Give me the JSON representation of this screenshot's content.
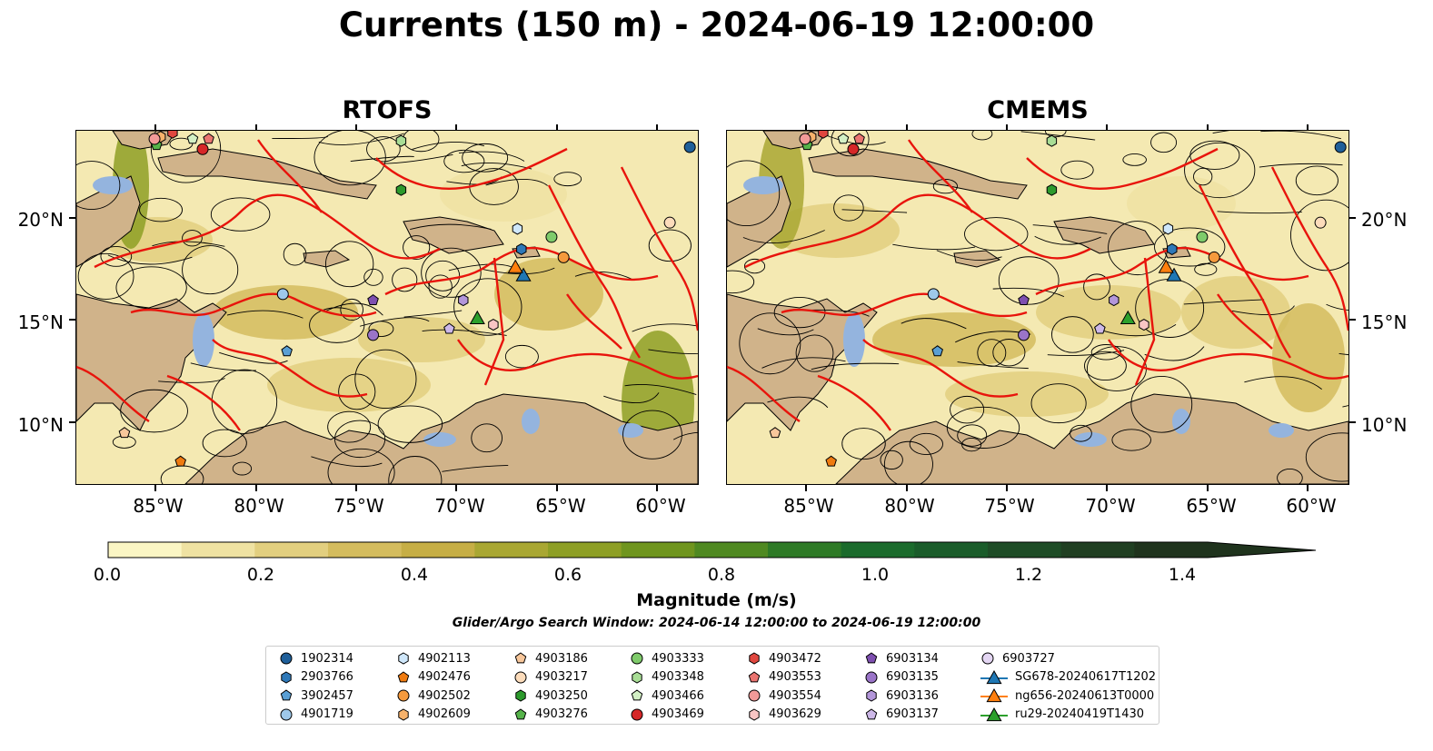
{
  "title": "Currents (150 m) - 2024-06-19 12:00:00",
  "panels": [
    {
      "title": "RTOFS"
    },
    {
      "title": "CMEMS"
    }
  ],
  "lat_labels": [
    "20°N",
    "15°N",
    "10°N"
  ],
  "lon_labels": [
    "85°W",
    "80°W",
    "75°W",
    "70°W",
    "65°W",
    "60°W"
  ],
  "map_extent": {
    "lon_min": -89.0,
    "lon_max": -58.0,
    "lat_min": 7.0,
    "lat_max": 24.3
  },
  "colorbar": {
    "label": "Magnitude (m/s)",
    "ticks": [
      "0.0",
      "0.2",
      "0.4",
      "0.6",
      "0.8",
      "1.0",
      "1.2",
      "1.4"
    ],
    "min": 0.0,
    "max": 1.5,
    "step": 0.1,
    "extend": "max",
    "colors": [
      "#fbf6c4",
      "#efe2a2",
      "#e2cf7f",
      "#d4bc5e",
      "#c6ae45",
      "#a9a732",
      "#8e9f25",
      "#6f951e",
      "#4f8921",
      "#2e7a26",
      "#1b6b2c",
      "#1a5c2a",
      "#1e4c26",
      "#203f22",
      "#1f331d"
    ]
  },
  "search_window": "Glider/Argo Search Window: 2024-06-14 12:00:00 to 2024-06-19 12:00:00",
  "map_colors": {
    "land": "#d0b38a",
    "ocean": "#f4e9b2",
    "lakes": "#94b4de",
    "boundary": "#e8140c",
    "streamline": "#000000"
  },
  "legend": [
    {
      "label": "1902314",
      "marker": "circle",
      "color": "#1f5f9a"
    },
    {
      "label": "2903766",
      "marker": "hexagon",
      "color": "#2e78b8"
    },
    {
      "label": "3902457",
      "marker": "pentagon",
      "color": "#5a9fd4"
    },
    {
      "label": "4901719",
      "marker": "circle",
      "color": "#9ec8ea"
    },
    {
      "label": "4902113",
      "marker": "hexagon",
      "color": "#cfe7fa"
    },
    {
      "label": "4902476",
      "marker": "pentagon",
      "color": "#ef7b10"
    },
    {
      "label": "4902502",
      "marker": "circle",
      "color": "#f59a3d"
    },
    {
      "label": "4902609",
      "marker": "hexagon",
      "color": "#f7b26b"
    },
    {
      "label": "4903186",
      "marker": "pentagon",
      "color": "#f8c79b"
    },
    {
      "label": "4903217",
      "marker": "circle",
      "color": "#fcdcbb"
    },
    {
      "label": "4903250",
      "marker": "hexagon",
      "color": "#2c9a2c"
    },
    {
      "label": "4903276",
      "marker": "pentagon",
      "color": "#56b34a"
    },
    {
      "label": "4903333",
      "marker": "circle",
      "color": "#7fcb6b"
    },
    {
      "label": "4903348",
      "marker": "hexagon",
      "color": "#a8dd95"
    },
    {
      "label": "4903466",
      "marker": "pentagon",
      "color": "#d3f0c5"
    },
    {
      "label": "4903469",
      "marker": "circle",
      "color": "#d62728"
    },
    {
      "label": "4903472",
      "marker": "hexagon",
      "color": "#e0473f"
    },
    {
      "label": "4903553",
      "marker": "pentagon",
      "color": "#ea7470"
    },
    {
      "label": "4903554",
      "marker": "circle",
      "color": "#f29a98"
    },
    {
      "label": "4903629",
      "marker": "hexagon",
      "color": "#f9c5c4"
    },
    {
      "label": "6903134",
      "marker": "pentagon",
      "color": "#7e4fb0"
    },
    {
      "label": "6903135",
      "marker": "circle",
      "color": "#9a74c8"
    },
    {
      "label": "6903136",
      "marker": "hexagon",
      "color": "#b396da"
    },
    {
      "label": "6903137",
      "marker": "pentagon",
      "color": "#cdb8e8"
    },
    {
      "label": "6903727",
      "marker": "circle",
      "color": "#e4d6f3"
    },
    {
      "label": "SG678-20240617T1202",
      "marker": "triangle",
      "color": "#1f77b4"
    },
    {
      "label": "ng656-20240613T0000",
      "marker": "triangle",
      "color": "#ff7f0e"
    },
    {
      "label": "ru29-20240419T1430",
      "marker": "triangle",
      "color": "#2ca02c"
    }
  ],
  "observations": [
    {
      "label": "1902314",
      "lon": -58.4,
      "lat": 23.5
    },
    {
      "label": "2903766",
      "lon": -66.8,
      "lat": 18.5
    },
    {
      "label": "3902457",
      "lon": -78.5,
      "lat": 13.5
    },
    {
      "label": "4901719",
      "lon": -78.7,
      "lat": 16.3
    },
    {
      "label": "4902113",
      "lon": -67.0,
      "lat": 19.5
    },
    {
      "label": "4902476",
      "lon": -83.8,
      "lat": 8.1
    },
    {
      "label": "4902502",
      "lon": -64.7,
      "lat": 18.1
    },
    {
      "label": "4902609",
      "lon": -84.8,
      "lat": 24.0
    },
    {
      "label": "4903186",
      "lon": -86.6,
      "lat": 9.5
    },
    {
      "label": "4903217",
      "lon": -59.4,
      "lat": 19.8
    },
    {
      "label": "4903250",
      "lon": -72.8,
      "lat": 21.4
    },
    {
      "label": "4903276",
      "lon": -85.0,
      "lat": 23.6
    },
    {
      "label": "4903333",
      "lon": -65.3,
      "lat": 19.1
    },
    {
      "label": "4903348",
      "lon": -72.8,
      "lat": 23.8
    },
    {
      "label": "4903466",
      "lon": -83.2,
      "lat": 23.9
    },
    {
      "label": "4903469",
      "lon": -82.7,
      "lat": 23.4
    },
    {
      "label": "4903472",
      "lon": -84.2,
      "lat": 24.2
    },
    {
      "label": "4903553",
      "lon": -82.4,
      "lat": 23.9
    },
    {
      "label": "4903554",
      "lon": -85.1,
      "lat": 23.9
    },
    {
      "label": "4903629",
      "lon": -68.2,
      "lat": 14.8
    },
    {
      "label": "6903134",
      "lon": -74.2,
      "lat": 16.0
    },
    {
      "label": "6903135",
      "lon": -74.2,
      "lat": 14.3
    },
    {
      "label": "6903136",
      "lon": -69.7,
      "lat": 16.0
    },
    {
      "label": "6903137",
      "lon": -70.4,
      "lat": 14.6
    },
    {
      "label": "SG678-20240617T1202",
      "lon": -66.7,
      "lat": 17.2
    },
    {
      "label": "ng656-20240613T0000",
      "lon": -67.1,
      "lat": 17.6
    },
    {
      "label": "ru29-20240419T1430",
      "lon": -69.0,
      "lat": 15.1
    }
  ]
}
